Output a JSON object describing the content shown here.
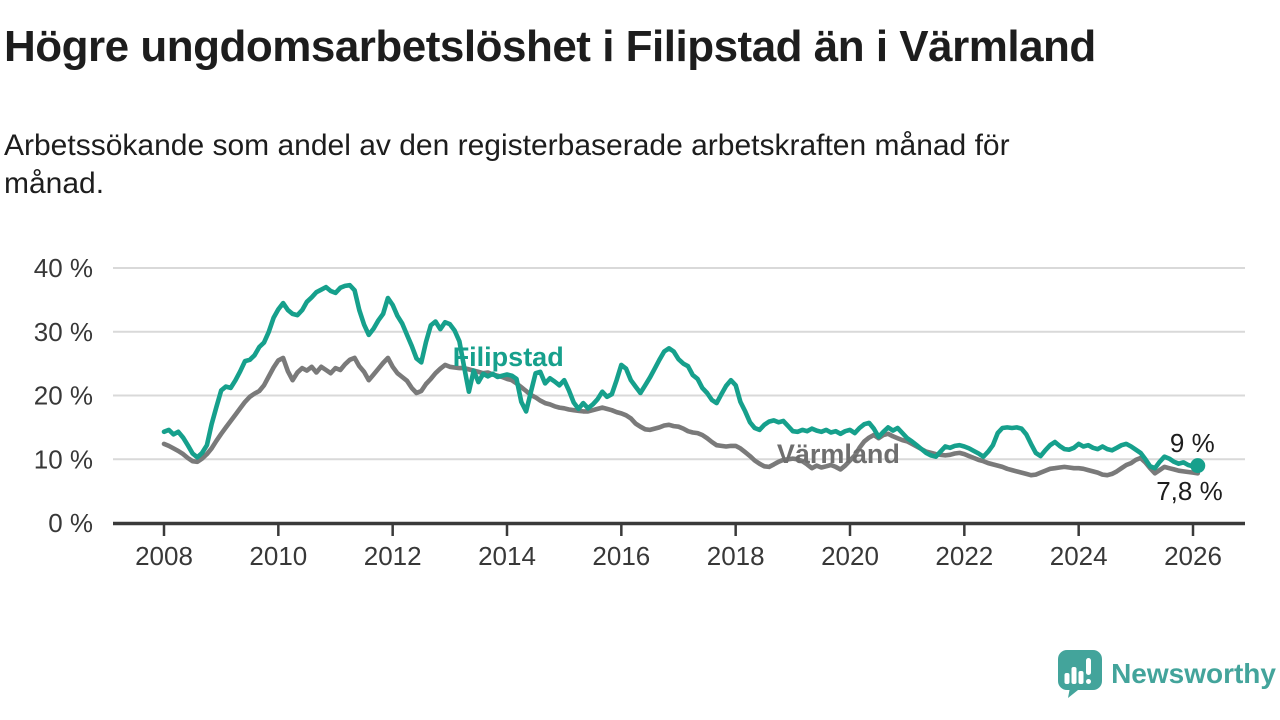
{
  "header": {
    "title": "Högre ungdomsarbetslöshet i Filipstad än i Värmland",
    "subtitle_lines": [
      "Arbetssökande som andel av den registerbaserade arbetskraften månad för",
      "månad."
    ]
  },
  "chart_data": {
    "type": "line",
    "xlabel": "",
    "ylabel": "",
    "ylim": [
      0,
      42
    ],
    "xlim": [
      2007.1,
      2026.9
    ],
    "grid": "horizontal",
    "x_ticks": [
      "2008",
      "2010",
      "2012",
      "2014",
      "2016",
      "2018",
      "2020",
      "2022",
      "2024",
      "2026"
    ],
    "x_tick_values": [
      2008,
      2010,
      2012,
      2014,
      2016,
      2018,
      2020,
      2022,
      2024,
      2026
    ],
    "y_ticks": [
      "0 %",
      "10 %",
      "20 %",
      "30 %",
      "40 %"
    ],
    "y_tick_values": [
      0,
      10,
      20,
      30,
      40
    ],
    "axis_color": "#3a3a3a",
    "grid_color": "#d9d9d9",
    "tick_text_color": "#383838",
    "series": [
      {
        "name": "Filipstad",
        "color": "#16a08c",
        "start_year": 2008,
        "step_months": 1,
        "end_dot": true,
        "values": [
          14.3,
          14.6,
          13.9,
          14.3,
          13.4,
          12.2,
          10.9,
          10.3,
          11.0,
          12.2,
          15.5,
          18.2,
          20.8,
          21.4,
          21.2,
          22.4,
          23.8,
          25.4,
          25.6,
          26.3,
          27.6,
          28.3,
          30.0,
          32.2,
          33.5,
          34.5,
          33.4,
          32.8,
          32.6,
          33.4,
          34.7,
          35.4,
          36.2,
          36.6,
          37.0,
          36.4,
          36.1,
          36.9,
          37.2,
          37.3,
          36.5,
          33.4,
          31.1,
          29.5,
          30.5,
          31.8,
          32.8,
          35.3,
          34.2,
          32.5,
          31.3,
          29.5,
          27.8,
          25.8,
          25.2,
          28.4,
          31.0,
          31.6,
          30.4,
          31.5,
          31.2,
          30.2,
          28.5,
          24.5,
          20.6,
          23.9,
          22.1,
          23.4,
          23.0,
          23.4,
          22.9,
          23.1,
          23.3,
          23.1,
          22.6,
          19.0,
          17.5,
          20.5,
          23.5,
          23.7,
          21.9,
          22.7,
          22.2,
          21.6,
          22.4,
          20.8,
          18.9,
          17.9,
          18.8,
          18.0,
          18.6,
          19.4,
          20.6,
          19.8,
          20.2,
          22.4,
          24.8,
          24.2,
          22.4,
          21.4,
          20.4,
          21.6,
          22.8,
          24.2,
          25.6,
          26.9,
          27.4,
          26.9,
          25.7,
          25.0,
          24.6,
          23.2,
          22.6,
          21.2,
          20.4,
          19.3,
          18.8,
          20.2,
          21.5,
          22.4,
          21.6,
          19.0,
          17.5,
          15.8,
          14.9,
          14.6,
          15.4,
          15.9,
          16.1,
          15.8,
          16.0,
          15.2,
          14.4,
          14.3,
          14.6,
          14.4,
          14.8,
          14.5,
          14.3,
          14.6,
          14.2,
          14.4,
          14.0,
          14.4,
          14.6,
          14.1,
          14.9,
          15.5,
          15.7,
          14.8,
          13.5,
          14.3,
          15.0,
          14.5,
          14.9,
          14.1,
          13.3,
          12.8,
          12.2,
          11.6,
          11.0,
          10.6,
          10.4,
          11.2,
          12.0,
          11.8,
          12.1,
          12.2,
          12.0,
          11.7,
          11.3,
          10.9,
          10.4,
          11.2,
          12.2,
          14.1,
          14.9,
          15.0,
          14.9,
          15.0,
          14.8,
          13.9,
          12.4,
          11.0,
          10.5,
          11.4,
          12.2,
          12.7,
          12.1,
          11.6,
          11.5,
          11.8,
          12.4,
          12.0,
          12.2,
          11.8,
          11.6,
          12.0,
          11.6,
          11.4,
          11.8,
          12.2,
          12.4,
          12.0,
          11.5,
          11.0,
          10.0,
          8.9,
          8.6,
          9.6,
          10.4,
          10.1,
          9.6,
          9.3,
          9.5,
          9.1,
          8.9,
          9.0
        ]
      },
      {
        "name": "Värmland",
        "color": "#7a7a7a",
        "start_year": 2008,
        "step_months": 1,
        "end_dot": false,
        "values": [
          12.4,
          12.1,
          11.7,
          11.3,
          10.8,
          10.2,
          9.7,
          9.6,
          10.1,
          10.8,
          11.7,
          12.9,
          14.0,
          15.0,
          16.0,
          17.0,
          18.0,
          19.0,
          19.8,
          20.3,
          20.7,
          21.6,
          23.0,
          24.4,
          25.5,
          25.9,
          23.8,
          22.4,
          23.6,
          24.3,
          23.9,
          24.5,
          23.6,
          24.5,
          24.0,
          23.5,
          24.3,
          24.0,
          24.9,
          25.6,
          25.9,
          24.6,
          23.7,
          22.4,
          23.3,
          24.2,
          25.1,
          25.9,
          24.5,
          23.5,
          22.9,
          22.3,
          21.2,
          20.4,
          20.7,
          21.8,
          22.6,
          23.5,
          24.2,
          24.8,
          24.5,
          24.4,
          24.3,
          24.3,
          24.1,
          23.9,
          23.7,
          23.5,
          23.6,
          23.3,
          23.1,
          22.9,
          22.6,
          22.4,
          21.9,
          21.3,
          20.7,
          20.1,
          19.7,
          19.2,
          18.8,
          18.6,
          18.3,
          18.1,
          18.0,
          17.8,
          17.7,
          17.6,
          17.5,
          17.5,
          17.7,
          17.9,
          18.1,
          17.9,
          17.7,
          17.4,
          17.2,
          16.9,
          16.4,
          15.6,
          15.1,
          14.7,
          14.6,
          14.8,
          15.0,
          15.3,
          15.4,
          15.2,
          15.1,
          14.8,
          14.4,
          14.2,
          14.1,
          13.8,
          13.3,
          12.7,
          12.2,
          12.1,
          12.0,
          12.1,
          12.1,
          11.7,
          11.1,
          10.5,
          9.8,
          9.3,
          8.9,
          8.8,
          9.2,
          9.6,
          9.9,
          10.0,
          10.1,
          10.0,
          9.7,
          9.2,
          8.6,
          9.0,
          8.7,
          8.9,
          9.1,
          8.8,
          8.4,
          9.0,
          9.8,
          10.6,
          11.8,
          12.8,
          13.4,
          13.8,
          13.3,
          13.8,
          14.0,
          13.6,
          13.3,
          13.0,
          12.8,
          12.4,
          12.0,
          11.6,
          11.2,
          11.0,
          10.8,
          10.7,
          10.6,
          10.7,
          10.9,
          11.0,
          10.8,
          10.5,
          10.2,
          9.9,
          9.7,
          9.4,
          9.2,
          9.0,
          8.8,
          8.5,
          8.3,
          8.1,
          7.9,
          7.7,
          7.5,
          7.6,
          7.9,
          8.2,
          8.5,
          8.6,
          8.7,
          8.8,
          8.7,
          8.6,
          8.6,
          8.5,
          8.3,
          8.1,
          7.9,
          7.6,
          7.5,
          7.7,
          8.1,
          8.6,
          9.1,
          9.4,
          9.9,
          10.2,
          9.5,
          8.6,
          7.8,
          8.3,
          8.8,
          8.6,
          8.4,
          8.2,
          8.1,
          8.0,
          7.9,
          7.8
        ]
      }
    ],
    "series_labels": [
      {
        "text": "Filipstad",
        "year": 2013.05,
        "value": 24.6,
        "color": "#16a08c"
      },
      {
        "text": "Värmland",
        "year": 2018.72,
        "value": 9.4,
        "color": "#6e6e6e"
      }
    ],
    "annotations": [
      {
        "text": "9 %",
        "year": 2026.38,
        "value": 11.1,
        "color": "#1d1d1d"
      },
      {
        "text": "7,8 %",
        "year": 2026.52,
        "value": 3.6,
        "color": "#1d1d1d"
      }
    ]
  },
  "footer": {
    "logo_text": "Newsworthy",
    "logo_color": "#43a49b"
  }
}
